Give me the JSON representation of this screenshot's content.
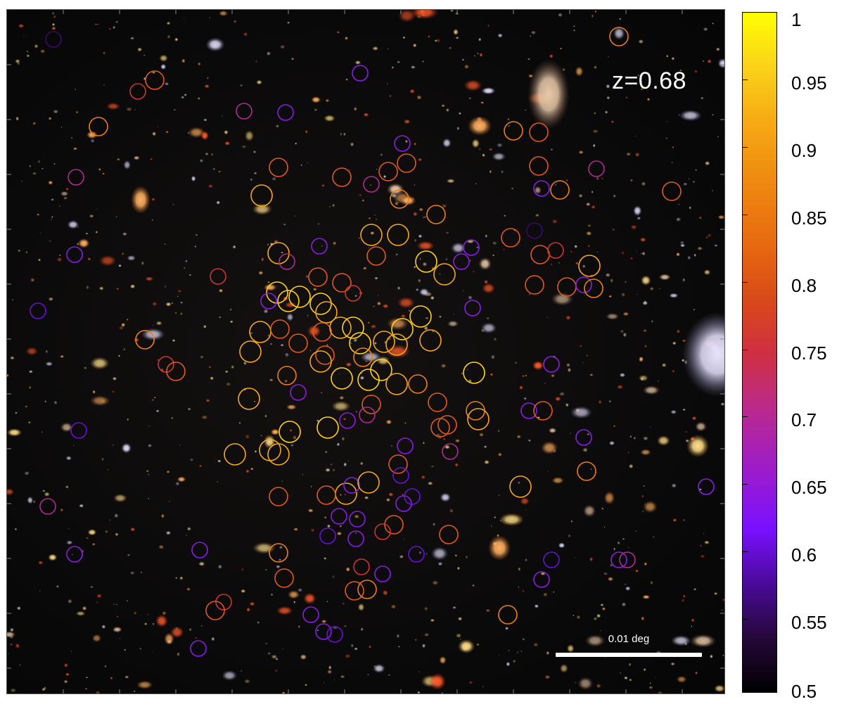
{
  "image": {
    "annotation": "z=0.68",
    "scale_bar": "0.01 deg"
  },
  "colorbar": {
    "ticks": [
      "1",
      "0.95",
      "0.9",
      "0.85",
      "0.8",
      "0.75",
      "0.7",
      "0.65",
      "0.6",
      "0.55",
      "0.5"
    ],
    "min": 0.5,
    "max": 1.0,
    "colors": [
      "#000000",
      "#4a0a9a",
      "#7a10ff",
      "#bb2a8a",
      "#cf3040",
      "#e86a10",
      "#f6aa14",
      "#ffff00"
    ]
  }
}
